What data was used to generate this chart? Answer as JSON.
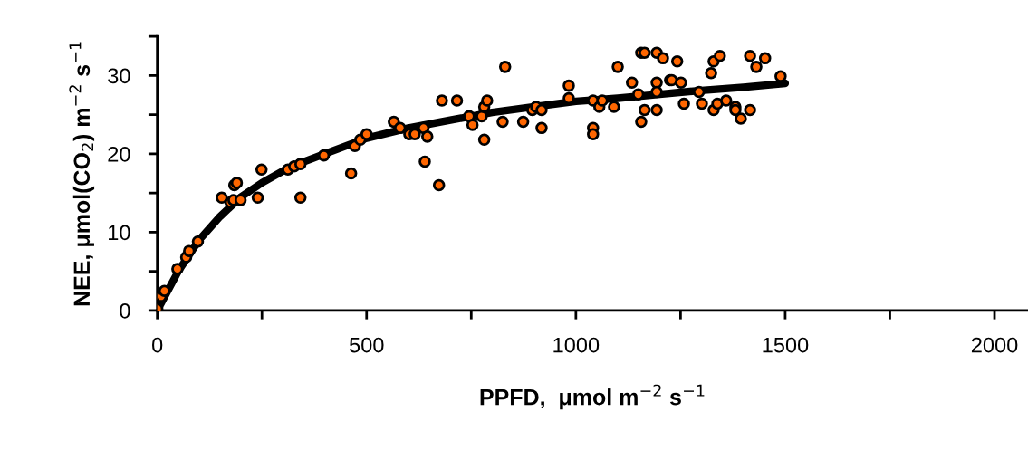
{
  "chart_data": {
    "type": "scatter",
    "xlabel": "PPFD,  μmol m$^{−2}$ s$^{−1}$",
    "ylabel": "NEE, μmol(CO$_{2}$) m$^{−2}$ s$^{−1}$",
    "xlim": [
      0,
      2080
    ],
    "ylim": [
      0,
      35
    ],
    "xticks": [
      0,
      {
        "value": 250,
        "label": null
      },
      500,
      {
        "value": 750,
        "label": null
      },
      1000,
      {
        "value": 1250,
        "label": null
      },
      1500,
      {
        "value": 1750,
        "label": null
      },
      2000
    ],
    "yticks": [
      0,
      {
        "value": 5,
        "label": null
      },
      10,
      {
        "value": 15,
        "label": null
      },
      20,
      {
        "value": 25,
        "label": null
      },
      30,
      {
        "value": 35,
        "label": null
      }
    ],
    "grid": false,
    "legend": false,
    "marker": "circle",
    "series": [
      {
        "type": "line",
        "color": "#000000",
        "line_style": "solid",
        "marker": "none",
        "x": [
          0,
          50,
          100,
          150,
          200,
          250,
          300,
          350,
          400,
          500,
          600,
          700,
          800,
          900,
          1000,
          1100,
          1200,
          1300,
          1400,
          1500
        ],
        "values": [
          0,
          5,
          9,
          12,
          14.5,
          16.3,
          17.8,
          19,
          20,
          22,
          23.3,
          24.3,
          25.3,
          26,
          26.7,
          27.1,
          27.6,
          28.1,
          28.5,
          29
        ]
      },
      {
        "color": "#ff6600",
        "x": [
          0,
          9,
          17,
          48,
          69,
          76,
          97,
          154,
          175,
          182,
          184,
          190,
          199,
          240,
          249,
          342,
          312,
          327,
          342,
          398,
          463,
          472,
          485,
          500,
          565,
          580,
          602,
          615,
          636,
          645,
          639,
          673,
          680,
          716,
          745,
          753,
          775,
          781,
          788,
          781,
          825,
          831,
          874,
          896,
          905,
          918,
          918,
          983,
          983,
          1041,
          1041,
          1041,
          1056,
          1063,
          1091,
          1100,
          1134,
          1149,
          1156,
          1164,
          1156,
          1164,
          1193,
          1208,
          1193,
          1193,
          1193,
          1225,
          1242,
          1229,
          1251,
          1258,
          1294,
          1301,
          1323,
          1329,
          1344,
          1329,
          1338,
          1359,
          1381,
          1381,
          1394,
          1416,
          1416,
          1431,
          1452,
          1489
        ],
        "values": [
          0.2,
          1.8,
          2.5,
          5.3,
          6.8,
          7.6,
          8.8,
          14.4,
          13.8,
          14.1,
          16.0,
          16.3,
          14.1,
          14.4,
          18.0,
          14.4,
          18.0,
          18.4,
          18.7,
          19.8,
          17.5,
          21.0,
          21.8,
          22.5,
          24.1,
          23.3,
          22.5,
          22.5,
          23.3,
          22.2,
          19.0,
          16.0,
          26.8,
          26.8,
          24.8,
          23.7,
          24.8,
          26.0,
          26.8,
          21.8,
          24.1,
          31.1,
          24.1,
          25.6,
          26.0,
          25.6,
          23.3,
          28.7,
          27.1,
          26.8,
          23.3,
          22.5,
          26.0,
          26.8,
          26.0,
          31.1,
          29.1,
          27.6,
          32.9,
          32.9,
          24.1,
          25.6,
          32.9,
          32.2,
          29.1,
          27.9,
          25.6,
          29.4,
          31.8,
          29.4,
          29.1,
          26.4,
          27.9,
          26.4,
          30.3,
          31.8,
          32.5,
          25.6,
          26.4,
          26.8,
          26.0,
          25.6,
          24.5,
          25.6,
          32.5,
          31.1,
          32.2,
          29.9
        ]
      }
    ]
  }
}
